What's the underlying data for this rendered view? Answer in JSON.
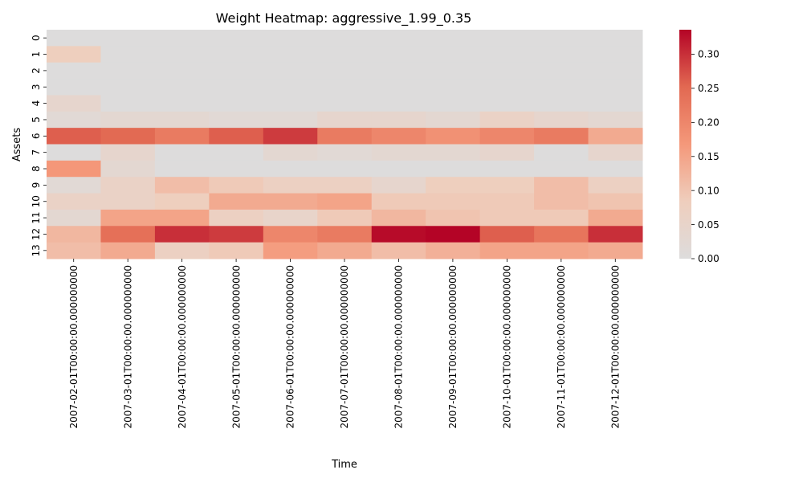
{
  "chart_data": {
    "type": "heatmap",
    "title": "Weight Heatmap: aggressive_1.99_0.35",
    "xlabel": "Time",
    "ylabel": "Assets",
    "x": [
      "2007-02-01T00:00:00.000000000",
      "2007-03-01T00:00:00.000000000",
      "2007-04-01T00:00:00.000000000",
      "2007-05-01T00:00:00.000000000",
      "2007-06-01T00:00:00.000000000",
      "2007-07-01T00:00:00.000000000",
      "2007-08-01T00:00:00.000000000",
      "2007-09-01T00:00:00.000000000",
      "2007-10-01T00:00:00.000000000",
      "2007-11-01T00:00:00.000000000",
      "2007-12-01T00:00:00.000000000"
    ],
    "y": [
      "0",
      "1",
      "2",
      "3",
      "4",
      "5",
      "6",
      "7",
      "8",
      "9",
      "10",
      "11",
      "12",
      "13"
    ],
    "values": [
      [
        0.0,
        0.0,
        0.0,
        0.0,
        0.0,
        0.0,
        0.0,
        0.0,
        0.0,
        0.0,
        0.0
      ],
      [
        0.08,
        0.0,
        0.0,
        0.0,
        0.0,
        0.0,
        0.0,
        0.0,
        0.0,
        0.0,
        0.0
      ],
      [
        0.0,
        0.0,
        0.0,
        0.0,
        0.0,
        0.0,
        0.0,
        0.0,
        0.0,
        0.0,
        0.0
      ],
      [
        0.0,
        0.0,
        0.0,
        0.0,
        0.0,
        0.0,
        0.0,
        0.0,
        0.0,
        0.0,
        0.0
      ],
      [
        0.04,
        0.0,
        0.0,
        0.0,
        0.0,
        0.0,
        0.0,
        0.0,
        0.0,
        0.0,
        0.0
      ],
      [
        0.02,
        0.03,
        0.03,
        0.02,
        0.02,
        0.04,
        0.04,
        0.03,
        0.06,
        0.04,
        0.03
      ],
      [
        0.26,
        0.25,
        0.22,
        0.26,
        0.29,
        0.22,
        0.2,
        0.18,
        0.2,
        0.22,
        0.14
      ],
      [
        0.0,
        0.04,
        0.0,
        0.0,
        0.03,
        0.02,
        0.03,
        0.03,
        0.04,
        0.0,
        0.04
      ],
      [
        0.17,
        0.03,
        0.0,
        0.0,
        0.0,
        0.0,
        0.0,
        0.0,
        0.0,
        0.0,
        0.0
      ],
      [
        0.02,
        0.06,
        0.11,
        0.09,
        0.07,
        0.07,
        0.04,
        0.08,
        0.08,
        0.11,
        0.07
      ],
      [
        0.06,
        0.06,
        0.08,
        0.14,
        0.14,
        0.15,
        0.09,
        0.09,
        0.09,
        0.11,
        0.1
      ],
      [
        0.03,
        0.15,
        0.15,
        0.07,
        0.05,
        0.09,
        0.12,
        0.1,
        0.09,
        0.09,
        0.14
      ],
      [
        0.12,
        0.24,
        0.3,
        0.29,
        0.2,
        0.22,
        0.33,
        0.34,
        0.26,
        0.23,
        0.3
      ],
      [
        0.11,
        0.14,
        0.07,
        0.09,
        0.16,
        0.14,
        0.11,
        0.13,
        0.15,
        0.15,
        0.14
      ]
    ],
    "vmin": 0.0,
    "vmax": 0.336,
    "colorbar_ticks": [
      "0.00",
      "0.05",
      "0.10",
      "0.15",
      "0.20",
      "0.25",
      "0.30"
    ],
    "colormap": "coolwarm (lower half: neutral grey to red)",
    "colors": {
      "low": "#dddcdc",
      "high": "#b40426"
    }
  }
}
